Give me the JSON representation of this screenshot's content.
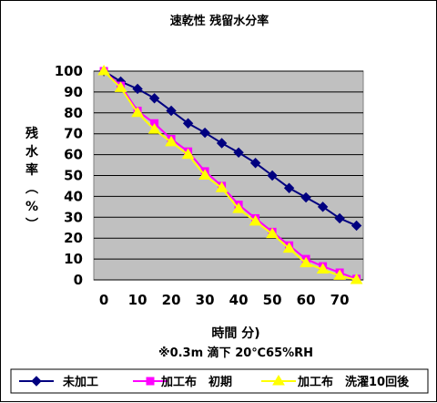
{
  "chart_data": {
    "type": "line",
    "title": "速乾性  残留水分率",
    "ylabel": "残水率（%）",
    "xlabel": "時間 分)",
    "note": "※0.3m 滴下 20℃65%RH",
    "xlim": [
      -3,
      77
    ],
    "ylim": [
      0,
      100
    ],
    "xticks": [
      0,
      10,
      20,
      30,
      40,
      50,
      60,
      70
    ],
    "yticks": [
      0,
      10,
      20,
      30,
      40,
      50,
      60,
      70,
      80,
      90,
      100
    ],
    "grid": true,
    "plot_background": "#c0c0c0",
    "legend_position": "bottom",
    "series": [
      {
        "name": "未加工",
        "color": "#000080",
        "marker": "diamond",
        "x": [
          0,
          5,
          10,
          15,
          20,
          25,
          30,
          35,
          40,
          45,
          50,
          55,
          60,
          65,
          70,
          75
        ],
        "y": [
          100,
          95,
          91.5,
          87,
          81,
          75,
          70.5,
          65.5,
          61,
          56,
          50,
          44,
          39.5,
          35,
          29.5,
          26
        ]
      },
      {
        "name": "加工布　初期",
        "color": "#ff00ff",
        "marker": "square",
        "x": [
          0,
          5,
          10,
          15,
          20,
          25,
          30,
          35,
          40,
          45,
          50,
          55,
          60,
          65,
          70,
          75
        ],
        "y": [
          100,
          93,
          81,
          75,
          67.5,
          61.5,
          52,
          45,
          36,
          29.5,
          23,
          16.5,
          10,
          6.5,
          3.5,
          0.5
        ]
      },
      {
        "name": "加工布　洗濯10回後",
        "color": "#ffff00",
        "marker": "triangle",
        "x": [
          0,
          5,
          10,
          15,
          20,
          25,
          30,
          35,
          40,
          45,
          50,
          55,
          60,
          65,
          70,
          75
        ],
        "y": [
          100,
          92,
          80,
          72,
          66,
          60,
          50,
          44,
          34,
          28,
          22,
          15,
          8,
          5,
          2,
          0
        ]
      }
    ]
  }
}
